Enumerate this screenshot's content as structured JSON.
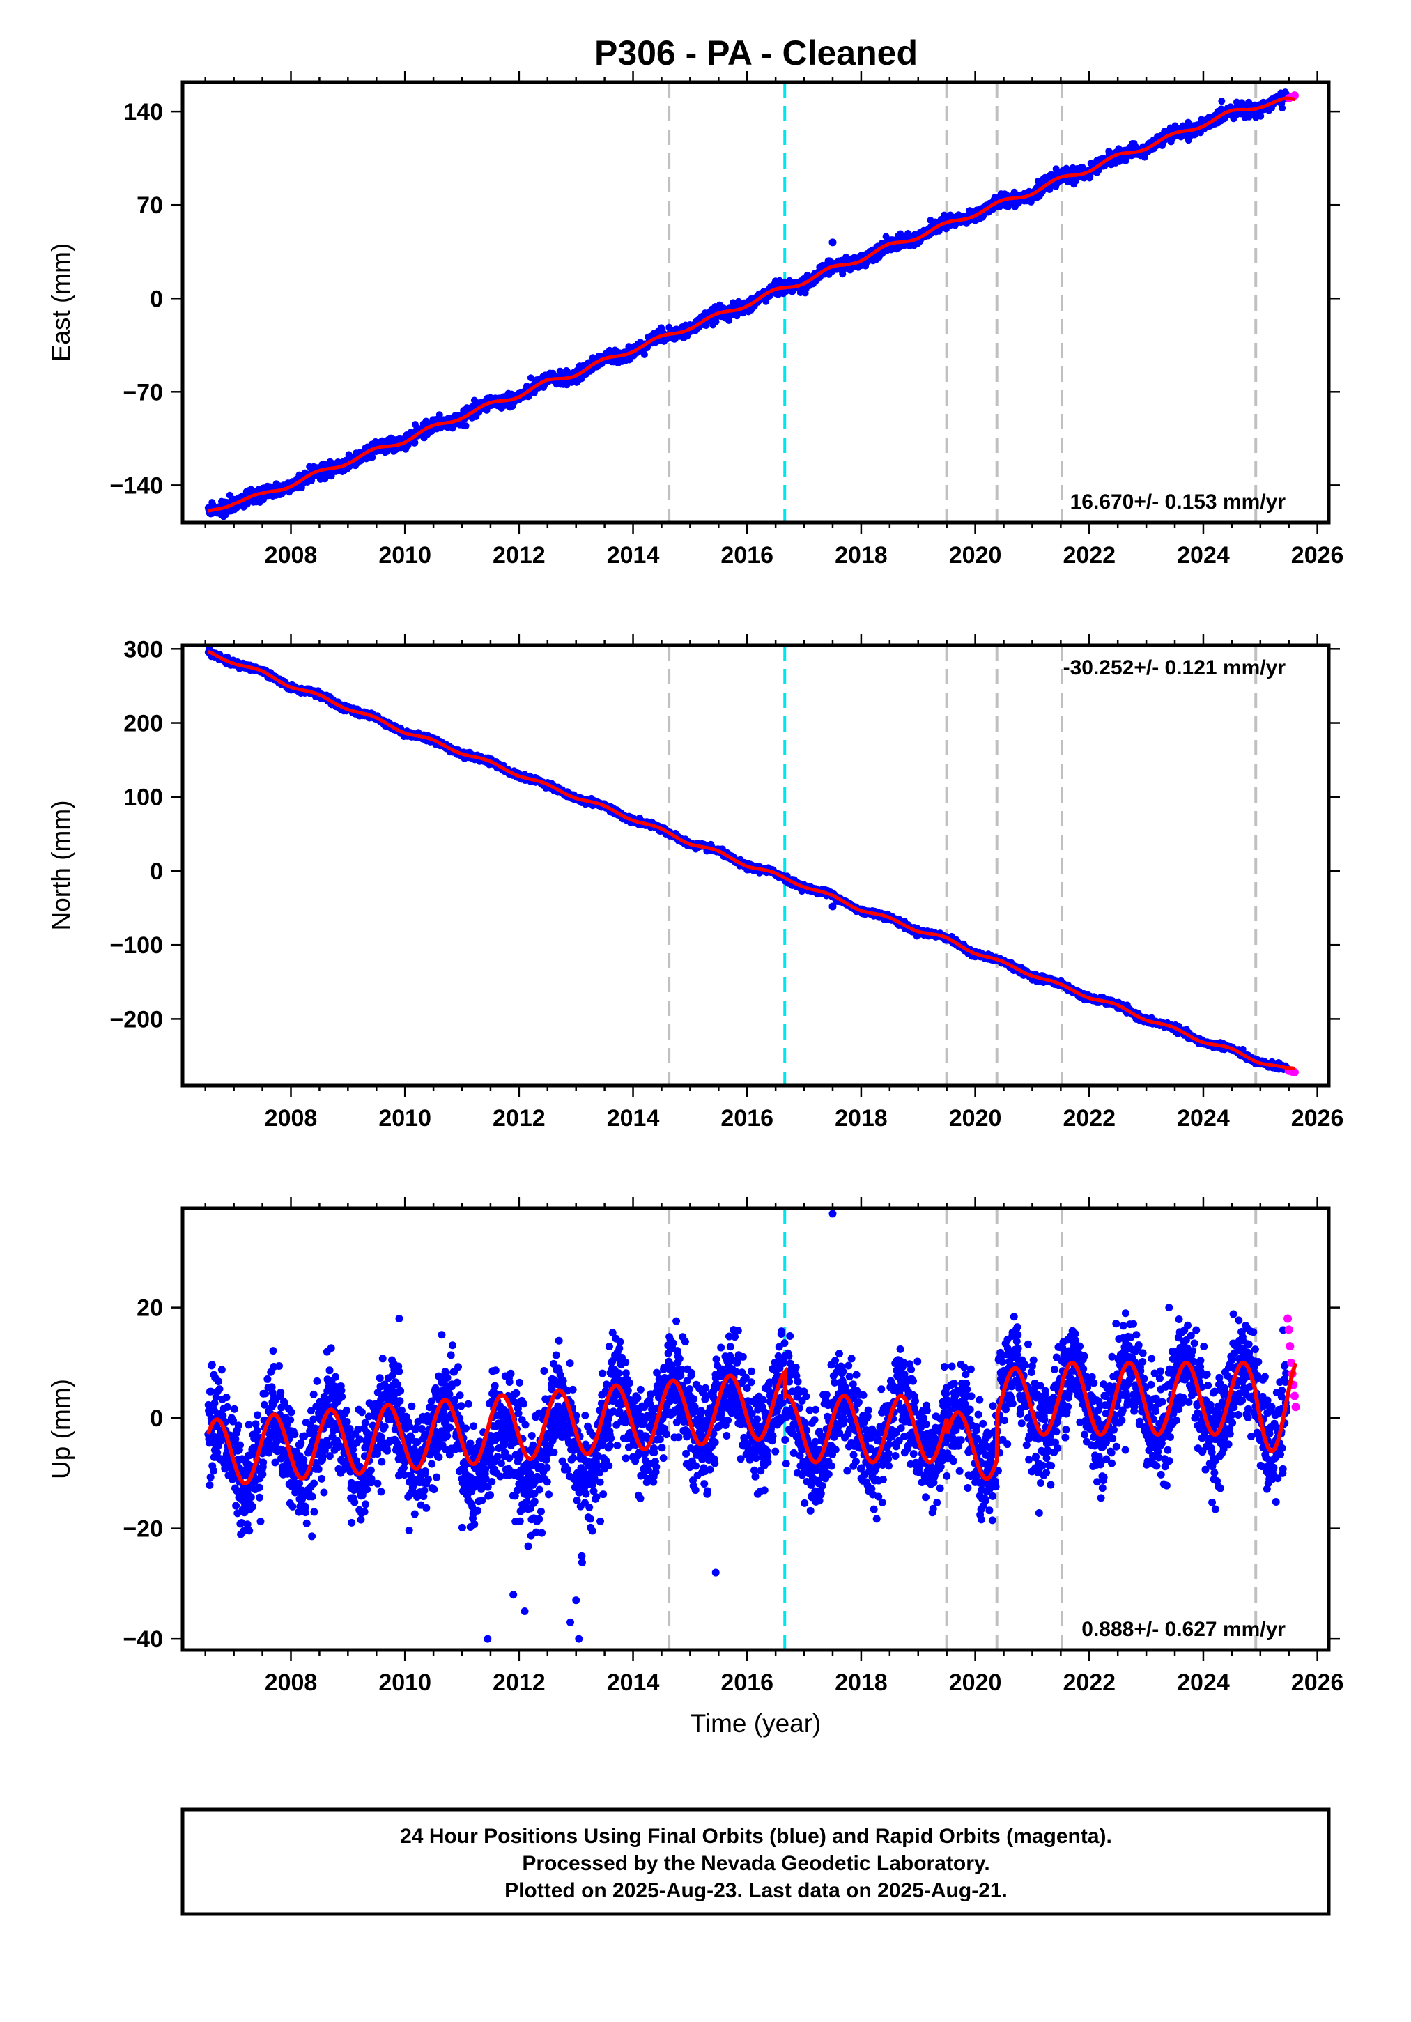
{
  "title": "P306  - PA - Cleaned",
  "footer": {
    "line1": "24 Hour Positions Using Final Orbits (blue) and Rapid Orbits (magenta).",
    "line2": "Processed by the Nevada Geodetic Laboratory.",
    "line3": "Plotted on 2025-Aug-23. Last data on 2025-Aug-21."
  },
  "colors": {
    "final_orbits": "#0000ff",
    "rapid_orbits": "#ff00ff",
    "model_fit": "#ff0000",
    "equipment_change": "#c0c0c0",
    "earthquake_marker": "#00e5ee"
  },
  "chart_data": [
    {
      "type": "scatter",
      "component": "east",
      "ylabel": "East (mm)",
      "xlabel": "",
      "xlim": [
        2006.1,
        2026.2
      ],
      "ylim": [
        -168,
        162
      ],
      "x_ticks": [
        "2008",
        "2010",
        "2012",
        "2014",
        "2016",
        "2018",
        "2020",
        "2022",
        "2024",
        "2026"
      ],
      "y_ticks": [
        "−140",
        "−70",
        "0",
        "70",
        "140"
      ],
      "y_tick_values": [
        -140,
        -70,
        0,
        70,
        140
      ],
      "rate_text": "16.670+/- 0.153 mm/yr",
      "rate_position": "bottom-right",
      "grey_dashed_lines": [
        2014.63,
        2019.5,
        2020.38,
        2021.52,
        2024.92
      ],
      "cyan_dashed_lines": [
        2016.66
      ],
      "series": [
        {
          "name": "Final Orbits",
          "color": "#0000ff",
          "x": [
            2006.55,
            2007.0,
            2007.5,
            2008.0,
            2008.5,
            2009.0,
            2009.5,
            2010.0,
            2010.5,
            2011.0,
            2011.5,
            2012.0,
            2012.5,
            2013.0,
            2013.5,
            2014.0,
            2014.5,
            2015.0,
            2015.5,
            2016.0,
            2016.5,
            2017.0,
            2017.5,
            2018.0,
            2018.5,
            2019.0,
            2019.5,
            2020.0,
            2020.5,
            2021.0,
            2021.5,
            2022.0,
            2022.5,
            2023.0,
            2023.5,
            2024.0,
            2024.5,
            2025.0,
            2025.45
          ],
          "y": [
            -161,
            -152,
            -148,
            -139,
            -131,
            -122,
            -114,
            -106,
            -97,
            -88,
            -80,
            -72,
            -63,
            -56,
            -47,
            -38,
            -30,
            -21,
            -13,
            -4,
            5,
            13,
            22,
            30,
            39,
            47,
            55,
            64,
            72,
            80,
            89,
            97,
            106,
            114,
            122,
            131,
            139,
            145,
            148
          ]
        },
        {
          "name": "Rapid Orbits",
          "color": "#ff00ff",
          "x": [
            2025.5,
            2025.55,
            2025.6
          ],
          "y": [
            150,
            151,
            152
          ]
        }
      ],
      "outliers": [
        {
          "x": 2017.5,
          "y": 42
        }
      ],
      "model": {
        "name": "Model fit",
        "color": "#ff0000",
        "x": [
          2006.55,
          2026.0
        ],
        "y": [
          -160,
          150
        ]
      }
    },
    {
      "type": "scatter",
      "component": "north",
      "ylabel": "North (mm)",
      "xlabel": "",
      "xlim": [
        2006.1,
        2026.2
      ],
      "ylim": [
        -290,
        305
      ],
      "x_ticks": [
        "2008",
        "2010",
        "2012",
        "2014",
        "2016",
        "2018",
        "2020",
        "2022",
        "2024",
        "2026"
      ],
      "y_ticks": [
        "300",
        "200",
        "100",
        "0",
        "−100",
        "−200"
      ],
      "y_tick_values": [
        300,
        200,
        100,
        0,
        -100,
        -200
      ],
      "rate_text": "-30.252+/- 0.121 mm/yr",
      "rate_position": "top-right",
      "grey_dashed_lines": [
        2014.63,
        2019.5,
        2020.38,
        2021.52,
        2024.92
      ],
      "cyan_dashed_lines": [
        2016.66
      ],
      "series": [
        {
          "name": "Final Orbits",
          "color": "#0000ff",
          "x": [
            2006.55,
            2007.0,
            2007.5,
            2008.0,
            2008.5,
            2009.0,
            2009.5,
            2010.0,
            2010.5,
            2011.0,
            2011.5,
            2012.0,
            2012.5,
            2013.0,
            2013.5,
            2014.0,
            2014.5,
            2015.0,
            2015.5,
            2016.0,
            2016.5,
            2017.0,
            2017.5,
            2018.0,
            2018.5,
            2019.0,
            2019.5,
            2020.0,
            2020.5,
            2021.0,
            2021.5,
            2022.0,
            2022.5,
            2023.0,
            2023.5,
            2024.0,
            2024.5,
            2025.0,
            2025.45
          ],
          "y": [
            295,
            282,
            268,
            250,
            236,
            220,
            205,
            188,
            175,
            160,
            146,
            130,
            115,
            100,
            86,
            70,
            55,
            38,
            25,
            8,
            -5,
            -20,
            -35,
            -52,
            -65,
            -80,
            -92,
            -110,
            -125,
            -140,
            -155,
            -170,
            -183,
            -200,
            -214,
            -230,
            -242,
            -258,
            -268
          ]
        },
        {
          "name": "Rapid Orbits",
          "color": "#ff00ff",
          "x": [
            2025.5,
            2025.55,
            2025.6
          ],
          "y": [
            -270,
            -271,
            -272
          ]
        }
      ],
      "outliers": [
        {
          "x": 2017.5,
          "y": -48
        }
      ],
      "model": {
        "name": "Model fit",
        "color": "#ff0000",
        "x": [
          2006.55,
          2026.0
        ],
        "y": [
          295,
          -275
        ]
      }
    },
    {
      "type": "scatter",
      "component": "up",
      "ylabel": "Up (mm)",
      "xlabel": "Time (year)",
      "xlim": [
        2006.1,
        2026.2
      ],
      "ylim": [
        -42,
        38
      ],
      "x_ticks": [
        "2008",
        "2010",
        "2012",
        "2014",
        "2016",
        "2018",
        "2020",
        "2022",
        "2024",
        "2026"
      ],
      "y_ticks": [
        "20",
        "0",
        "−20",
        "−40"
      ],
      "y_tick_values": [
        20,
        0,
        -20,
        -40
      ],
      "rate_text": "0.888+/- 0.627 mm/yr",
      "rate_position": "bottom-right",
      "grey_dashed_lines": [
        2014.63,
        2019.5,
        2020.38,
        2021.52,
        2024.92
      ],
      "cyan_dashed_lines": [
        2016.66
      ],
      "seasonal_model": [
        {
          "x0": 2006.55,
          "x1": 2016.66,
          "offset_a": -6.4,
          "offset_b": 0.88,
          "amplitude": 6.0
        },
        {
          "x0": 2016.66,
          "x1": 2019.5,
          "offset_a": -2.0,
          "offset_b": 0.0,
          "amplitude": 6.0
        },
        {
          "x0": 2019.5,
          "x1": 2020.38,
          "offset_a": -5.0,
          "offset_b": 0.0,
          "amplitude": 6.0
        },
        {
          "x0": 2020.38,
          "x1": 2021.52,
          "offset_a": 3.0,
          "offset_b": 0.0,
          "amplitude": 6.0
        },
        {
          "x0": 2021.52,
          "x1": 2024.92,
          "offset_a": 3.5,
          "offset_b": 0.0,
          "amplitude": 6.5
        },
        {
          "x0": 2024.92,
          "x1": 2025.62,
          "offset_a": 2.5,
          "offset_b": 0.0,
          "amplitude": 8.5
        }
      ],
      "series": [
        {
          "name": "Final Orbits",
          "color": "#0000ff",
          "note_scatter_sd_mm": 4.5
        },
        {
          "name": "Rapid Orbits",
          "color": "#ff00ff",
          "x": [
            2025.48,
            2025.5,
            2025.52,
            2025.54,
            2025.56,
            2025.58,
            2025.6,
            2025.62
          ],
          "y": [
            18,
            16,
            13,
            10,
            8,
            6,
            4,
            2
          ]
        }
      ],
      "outliers": [
        {
          "x": 2017.5,
          "y": 37
        },
        {
          "x": 2011.45,
          "y": -40
        },
        {
          "x": 2013.05,
          "y": -40
        },
        {
          "x": 2012.9,
          "y": -37
        },
        {
          "x": 2011.9,
          "y": -32
        },
        {
          "x": 2015.45,
          "y": -28
        },
        {
          "x": 2013.0,
          "y": -33
        },
        {
          "x": 2012.1,
          "y": -35
        },
        {
          "x": 2013.1,
          "y": -25
        },
        {
          "x": 2009.9,
          "y": 18
        },
        {
          "x": 2012.7,
          "y": 14
        },
        {
          "x": 2023.4,
          "y": 20
        }
      ],
      "model": {
        "name": "Model fit",
        "color": "#ff0000"
      }
    }
  ]
}
